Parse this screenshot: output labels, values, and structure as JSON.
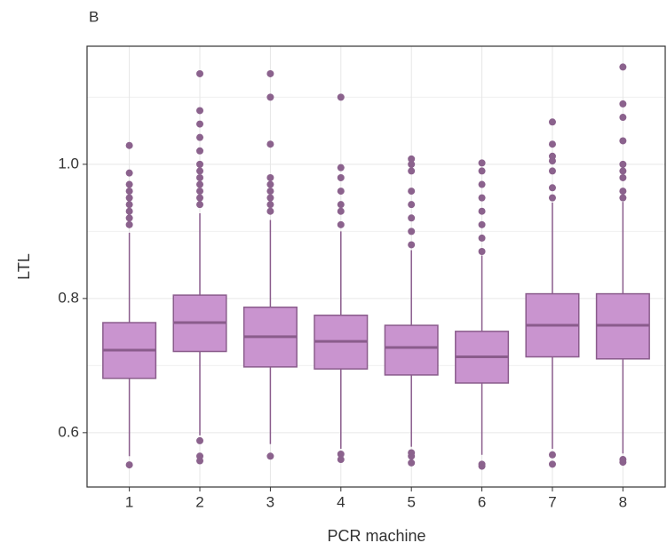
{
  "chart_data": {
    "type": "box",
    "title": "B",
    "xlabel": "PCR machine",
    "ylabel": "LTL",
    "categories": [
      "1",
      "2",
      "3",
      "4",
      "5",
      "6",
      "7",
      "8"
    ],
    "boxes": [
      {
        "whislo": 0.565,
        "q1": 0.681,
        "med": 0.723,
        "q3": 0.764,
        "whishi": 0.898,
        "fliers": [
          0.552,
          0.91,
          0.92,
          0.93,
          0.94,
          0.95,
          0.96,
          0.97,
          0.987,
          1.028
        ]
      },
      {
        "whislo": 0.596,
        "q1": 0.721,
        "med": 0.764,
        "q3": 0.805,
        "whishi": 0.927,
        "fliers": [
          0.558,
          0.565,
          0.588,
          0.94,
          0.95,
          0.96,
          0.97,
          0.98,
          0.99,
          1.0,
          1.02,
          1.04,
          1.06,
          1.08,
          1.135
        ]
      },
      {
        "whislo": 0.583,
        "q1": 0.698,
        "med": 0.743,
        "q3": 0.787,
        "whishi": 0.917,
        "fliers": [
          0.565,
          0.93,
          0.94,
          0.95,
          0.96,
          0.97,
          0.98,
          1.03,
          1.1,
          1.135
        ]
      },
      {
        "whislo": 0.576,
        "q1": 0.695,
        "med": 0.736,
        "q3": 0.775,
        "whishi": 0.9,
        "fliers": [
          0.56,
          0.568,
          0.91,
          0.93,
          0.94,
          0.96,
          0.98,
          0.995,
          1.1
        ]
      },
      {
        "whislo": 0.579,
        "q1": 0.686,
        "med": 0.727,
        "q3": 0.76,
        "whishi": 0.872,
        "fliers": [
          0.555,
          0.565,
          0.57,
          0.88,
          0.9,
          0.92,
          0.94,
          0.96,
          0.99,
          1.0,
          1.008
        ]
      },
      {
        "whislo": 0.567,
        "q1": 0.674,
        "med": 0.713,
        "q3": 0.751,
        "whishi": 0.864,
        "fliers": [
          0.55,
          0.553,
          0.87,
          0.89,
          0.91,
          0.93,
          0.95,
          0.97,
          0.99,
          1.002
        ]
      },
      {
        "whislo": 0.576,
        "q1": 0.713,
        "med": 0.76,
        "q3": 0.807,
        "whishi": 0.943,
        "fliers": [
          0.553,
          0.567,
          0.95,
          0.965,
          0.99,
          1.005,
          1.012,
          1.03,
          1.063
        ]
      },
      {
        "whislo": 0.569,
        "q1": 0.71,
        "med": 0.76,
        "q3": 0.807,
        "whishi": 0.944,
        "fliers": [
          0.556,
          0.56,
          0.95,
          0.96,
          0.98,
          0.99,
          1.0,
          1.035,
          1.07,
          1.09,
          1.145
        ]
      }
    ],
    "fill_color": "#c994cf",
    "line_color": "#8a5c8c",
    "point_color": "#8b628d",
    "ylim": [
      0.519,
      1.176
    ],
    "yticks": [
      0.6,
      0.8,
      {
        "value": 1,
        "label": "1.0"
      }
    ],
    "minor_yticks": [
      0.7,
      0.9,
      1.1
    ],
    "grid": true
  }
}
